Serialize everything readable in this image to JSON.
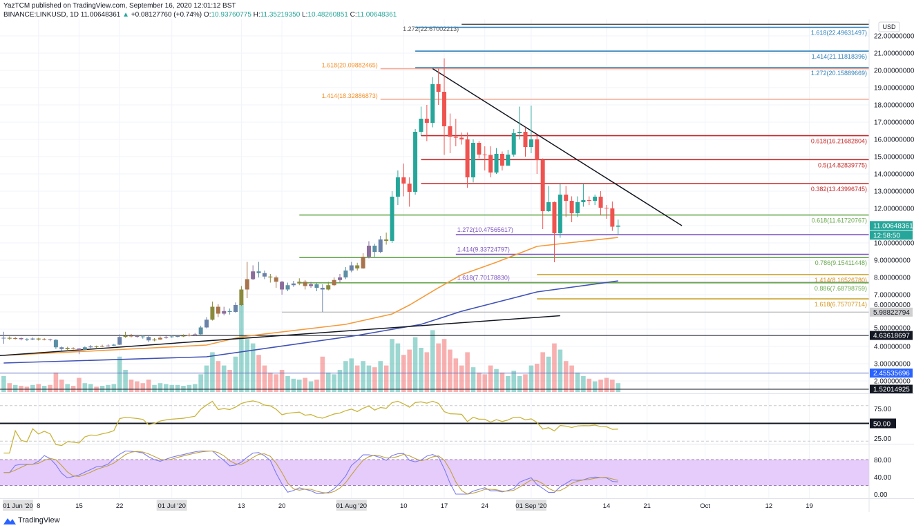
{
  "header": {
    "published": "YazTCM published on TradingView.com, September 16, 2020 12:01:12 BST",
    "symbol": "BINANCE:LINKUSD, 1D",
    "last": "11.00648361",
    "change_arrow": "▲",
    "change": "+0.08127760 (+0.74%)",
    "o_label": "O:",
    "o": "10.93760775",
    "h_label": "H:",
    "h": "11.35219350",
    "l_label": "L:",
    "l": "10.48260851",
    "c_label": "C:",
    "c": "11.00648361"
  },
  "footer": {
    "brand": "TradingView",
    "logo_icon": "tradingview-logo-icon"
  },
  "colors": {
    "up": "#26a69a",
    "down": "#ef5350",
    "rsi": "#c9b43a",
    "stoch_k": "#7b7bf0",
    "stoch_d": "#c0a040",
    "ma_fast": "#f59a3a",
    "ma_slow": "#3f51b5",
    "band": "#e6ccfa"
  },
  "chart_data": [
    {
      "type": "candlestick",
      "pane": "price",
      "currency": "USD",
      "ylim": [
        1.3,
        22.7
      ],
      "y_ticks": [
        "22.00000000",
        "21.00000000",
        "20.00000000",
        "19.00000000",
        "18.00000000",
        "17.00000000",
        "16.00000000",
        "15.00000000",
        "14.00000000",
        "13.00000000",
        "12.00000000",
        "10.00000000",
        "9.00000000",
        "8.00000000",
        "7.00000000",
        "6.00000000",
        "5.00000000",
        "4.00000000",
        "3.00000000",
        "2.00000000"
      ],
      "x_ticks": [
        {
          "date": "2020-06-01",
          "label": "01 Jun '20",
          "major": true
        },
        {
          "date": "2020-06-08",
          "label": "8"
        },
        {
          "date": "2020-06-15",
          "label": "15"
        },
        {
          "date": "2020-06-22",
          "label": "22"
        },
        {
          "date": "2020-07-01",
          "label": "01 Jul '20",
          "major": true
        },
        {
          "date": "2020-07-13",
          "label": "13"
        },
        {
          "date": "2020-07-20",
          "label": "20"
        },
        {
          "date": "2020-08-01",
          "label": "01 Aug '20",
          "major": true
        },
        {
          "date": "2020-08-10",
          "label": "10"
        },
        {
          "date": "2020-08-17",
          "label": "17"
        },
        {
          "date": "2020-08-24",
          "label": "24"
        },
        {
          "date": "2020-09-01",
          "label": "01 Sep '20",
          "major": true
        },
        {
          "date": "2020-09-14",
          "label": "14"
        },
        {
          "date": "2020-09-21",
          "label": "21"
        },
        {
          "date": "2020-10-01",
          "label": "Oct"
        },
        {
          "date": "2020-10-12",
          "label": "12"
        },
        {
          "date": "2020-10-19",
          "label": "19"
        }
      ],
      "start_date": "2020-06-02",
      "open": [
        4.48,
        4.5,
        4.45,
        4.48,
        4.42,
        4.4,
        4.46,
        4.4,
        4.42,
        4.38,
        3.95,
        3.85,
        3.92,
        3.88,
        3.8,
        3.95,
        4.0,
        3.98,
        4.02,
        4.05,
        4.1,
        4.55,
        4.62,
        4.6,
        4.58,
        4.55,
        4.35,
        4.4,
        4.5,
        4.55,
        4.58,
        4.6,
        4.62,
        4.66,
        4.7,
        5.1,
        5.55,
        6.3,
        5.9,
        6.05,
        6.0,
        6.4,
        7.3,
        7.9,
        8.35,
        8.25,
        8.05,
        8.0,
        7.75,
        7.3,
        7.55,
        7.65,
        7.75,
        7.5,
        7.6,
        7.4,
        7.3,
        7.55,
        7.85,
        8.0,
        8.4,
        8.7,
        8.52,
        9.2,
        9.84,
        9.48,
        10.2,
        10.12,
        12.68,
        13.8,
        13.44,
        12.96,
        16.44,
        17.2,
        16.96,
        19.2,
        18.76,
        16.76,
        16.16,
        16.1,
        16.0,
        13.8,
        15.8,
        15.12,
        15.1,
        14.08,
        15.16,
        14.48,
        15.12,
        16.36,
        16.44,
        15.56,
        16.0,
        14.8,
        11.84,
        12.36,
        10.56,
        12.8,
        12.44,
        11.72,
        12.36,
        12.48,
        12.44,
        12.68,
        12.04,
        12.0,
        10.9376
      ],
      "high": [
        4.85,
        4.58,
        4.55,
        4.52,
        4.48,
        4.52,
        4.5,
        4.48,
        4.45,
        4.42,
        4.0,
        3.98,
        3.95,
        3.9,
        4.0,
        4.08,
        4.05,
        4.1,
        4.12,
        4.15,
        4.7,
        4.85,
        4.72,
        4.68,
        4.65,
        4.6,
        4.48,
        4.58,
        4.62,
        4.66,
        4.68,
        4.7,
        4.75,
        4.78,
        5.2,
        5.7,
        6.6,
        6.45,
        6.3,
        6.2,
        6.55,
        7.5,
        8.9,
        8.7,
        8.9,
        8.4,
        8.2,
        8.1,
        7.8,
        7.7,
        7.8,
        7.95,
        7.85,
        7.75,
        7.7,
        7.6,
        7.75,
        8.0,
        8.2,
        8.6,
        8.9,
        8.85,
        9.4,
        10.1,
        9.95,
        10.4,
        10.6,
        13.0,
        14.2,
        14.6,
        13.8,
        16.6,
        17.9,
        18.0,
        19.6,
        20.1,
        20.7,
        17.5,
        17.2,
        16.4,
        16.4,
        16.0,
        15.9,
        15.6,
        15.6,
        15.5,
        15.3,
        15.4,
        16.6,
        17.9,
        16.7,
        17.96,
        16.2,
        14.9,
        13.3,
        12.4,
        13.4,
        13.3,
        12.7,
        12.7,
        13.4,
        12.7,
        12.8,
        13.0,
        12.2,
        12.4,
        11.3522
      ],
      "low": [
        4.15,
        4.38,
        4.4,
        4.35,
        4.32,
        4.36,
        4.34,
        4.35,
        4.3,
        3.85,
        3.75,
        3.8,
        3.82,
        3.55,
        3.78,
        3.9,
        3.92,
        3.95,
        3.98,
        4.02,
        4.08,
        4.5,
        4.52,
        4.5,
        4.45,
        4.25,
        4.3,
        4.38,
        4.45,
        4.5,
        4.52,
        4.55,
        4.58,
        4.62,
        4.68,
        5.05,
        5.5,
        5.7,
        5.8,
        5.85,
        5.95,
        6.35,
        6.8,
        7.85,
        8.0,
        7.9,
        7.7,
        7.4,
        7.0,
        7.2,
        7.45,
        7.55,
        7.3,
        7.4,
        7.2,
        6.0,
        7.25,
        7.5,
        7.7,
        7.9,
        8.3,
        8.4,
        8.5,
        9.1,
        9.2,
        9.4,
        9.9,
        10.0,
        12.2,
        12.7,
        12.1,
        12.8,
        16.2,
        15.9,
        16.7,
        18.0,
        15.1,
        15.2,
        15.6,
        15.7,
        13.2,
        13.5,
        14.9,
        14.2,
        13.8,
        14.0,
        14.2,
        14.6,
        15.0,
        16.0,
        15.0,
        15.2,
        14.0,
        10.8,
        11.8,
        8.88,
        10.3,
        11.5,
        11.2,
        11.5,
        12.1,
        12.2,
        12.2,
        11.6,
        11.4,
        10.7,
        10.4826
      ],
      "close": [
        4.5,
        4.45,
        4.48,
        4.42,
        4.4,
        4.46,
        4.4,
        4.42,
        4.38,
        3.95,
        3.85,
        3.92,
        3.88,
        3.8,
        3.95,
        4.0,
        3.98,
        4.02,
        4.05,
        4.1,
        4.55,
        4.62,
        4.6,
        4.58,
        4.55,
        4.35,
        4.4,
        4.5,
        4.55,
        4.58,
        4.6,
        4.62,
        4.66,
        4.7,
        5.1,
        5.55,
        6.3,
        5.9,
        6.05,
        6.0,
        6.4,
        7.3,
        7.9,
        8.35,
        8.25,
        8.05,
        8.0,
        7.75,
        7.3,
        7.55,
        7.65,
        7.75,
        7.5,
        7.6,
        7.4,
        7.3,
        7.55,
        7.85,
        8.0,
        8.4,
        8.7,
        8.52,
        9.2,
        9.84,
        9.48,
        10.2,
        10.12,
        12.68,
        13.8,
        13.44,
        12.96,
        16.44,
        17.2,
        16.96,
        19.2,
        18.76,
        16.76,
        16.16,
        16.1,
        16.0,
        13.8,
        15.8,
        15.12,
        15.1,
        14.08,
        15.16,
        14.48,
        15.12,
        16.36,
        16.44,
        15.56,
        16.0,
        14.8,
        11.84,
        12.36,
        10.56,
        12.8,
        12.44,
        11.72,
        12.36,
        12.48,
        12.44,
        12.68,
        12.04,
        12.0,
        10.94,
        11.0065
      ],
      "volume_relative": [
        18,
        10,
        8,
        7,
        6,
        8,
        9,
        7,
        8,
        22,
        14,
        9,
        7,
        16,
        10,
        9,
        6,
        7,
        8,
        9,
        40,
        25,
        14,
        12,
        10,
        14,
        8,
        10,
        9,
        8,
        8,
        7,
        8,
        9,
        20,
        30,
        45,
        35,
        30,
        25,
        40,
        100,
        60,
        55,
        42,
        30,
        22,
        20,
        25,
        18,
        15,
        14,
        16,
        12,
        14,
        40,
        22,
        20,
        25,
        35,
        38,
        30,
        35,
        30,
        28,
        35,
        30,
        60,
        55,
        42,
        48,
        62,
        50,
        45,
        70,
        55,
        60,
        48,
        38,
        30,
        45,
        28,
        22,
        20,
        30,
        26,
        22,
        18,
        24,
        18,
        20,
        30,
        32,
        45,
        40,
        55,
        48,
        35,
        30,
        22,
        18,
        15,
        12,
        14,
        16,
        14,
        10
      ],
      "moving_averages": [
        {
          "color": "#f59a3a",
          "points": [
            [
              "2020-06-02",
              3.48
            ],
            [
              "2020-06-21",
              3.8
            ],
            [
              "2020-07-07",
              4.08
            ],
            [
              "2020-07-13",
              4.56
            ],
            [
              "2020-07-31",
              5.28
            ],
            [
              "2020-08-08",
              5.88
            ],
            [
              "2020-08-11",
              6.4
            ],
            [
              "2020-08-16",
              7.4
            ],
            [
              "2020-08-20",
              8.16
            ],
            [
              "2020-08-26",
              8.88
            ],
            [
              "2020-09-02",
              9.8
            ],
            [
              "2020-09-16",
              10.32
            ]
          ]
        },
        {
          "color": "#3f51b5",
          "points": [
            [
              "2020-06-02",
              3.04
            ],
            [
              "2020-07-07",
              3.4
            ],
            [
              "2020-08-02",
              4.64
            ],
            [
              "2020-08-13",
              5.28
            ],
            [
              "2020-08-20",
              6.04
            ],
            [
              "2020-09-02",
              7.16
            ],
            [
              "2020-09-16",
              7.8
            ]
          ]
        }
      ],
      "trendlines": [
        {
          "color": "#131722",
          "from": [
            "2020-08-15",
            20.1
          ],
          "to": [
            "2020-09-27",
            11.0
          ]
        },
        {
          "color": "#131722",
          "from": [
            "2020-06-01",
            3.46
          ],
          "to": [
            "2020-09-06",
            5.78
          ]
        }
      ],
      "levels": [
        {
          "label": "1.272(22.67002213)",
          "price": 22.67002213,
          "color": "#555555",
          "from": "2020-08-20",
          "label_side": "left"
        },
        {
          "label": "1.618(22.49631497)",
          "price": 22.49631497,
          "color": "#2e7fb8",
          "from": "2020-08-12",
          "label_side": "right"
        },
        {
          "label": "1.414(21.11818396)",
          "price": 21.11818396,
          "color": "#2e7fb8",
          "from": "2020-08-12",
          "label_side": "right"
        },
        {
          "label": "1.272(20.15889669)",
          "price": 20.15889669,
          "color": "#2e7fb8",
          "from": "2020-08-12",
          "label_side": "right"
        },
        {
          "label": "1.618(20.09882465)",
          "price": 20.09882465,
          "color": "#f7a894",
          "label_color": "#f5922f",
          "from": "2020-08-06",
          "label_side": "left"
        },
        {
          "label": "1.414(18.32886873)",
          "price": 18.32886873,
          "color": "#f7a894",
          "label_color": "#f5922f",
          "from": "2020-08-06",
          "label_side": "left"
        },
        {
          "label": "0.618(16.21682804)",
          "price": 16.21682804,
          "color": "#c62828",
          "from": "2020-08-13",
          "label_side": "right"
        },
        {
          "label": "0.5(14.82839775)",
          "price": 14.82839775,
          "color": "#c62828",
          "from": "2020-08-13",
          "label_side": "right"
        },
        {
          "label": "0.382(13.43996745)",
          "price": 13.43996745,
          "color": "#c62828",
          "from": "2020-08-13",
          "label_side": "right"
        },
        {
          "label": "0.618(11.61720767)",
          "price": 11.61720767,
          "color": "#6aa84f",
          "from": "2020-07-23",
          "label_side": "right"
        },
        {
          "label": "1.272(10.47565617)",
          "price": 10.47565617,
          "color": "#7e57c2",
          "from": "2020-08-19",
          "label_side": "left"
        },
        {
          "label": "1.414(9.33724797)",
          "price": 9.33724797,
          "color": "#7e57c2",
          "from": "2020-08-19",
          "label_side": "left"
        },
        {
          "label": "0.786(9.15411448)",
          "price": 9.15411448,
          "color": "#6aa84f",
          "from": "2020-07-23",
          "label_side": "right"
        },
        {
          "label": "1.414(8.16526780)",
          "price": 8.1652678,
          "color": "#c9a227",
          "label_color": "#d4951f",
          "from": "2020-09-02",
          "label_side": "right"
        },
        {
          "label": "1.618(7.70178830)",
          "price": 7.7017883,
          "color": "#7e57c2",
          "from": "2020-08-19",
          "label_side": "left"
        },
        {
          "label": "0.886(7.68798759)",
          "price": 7.68798759,
          "color": "#6aa84f",
          "from": "2020-07-23",
          "label_side": "right"
        },
        {
          "label": "1.618(6.75707714)",
          "price": 6.75707714,
          "color": "#c9a227",
          "label_color": "#d4951f",
          "from": "2020-09-02",
          "label_side": "right"
        }
      ],
      "axis_badges": [
        {
          "text": "11.00648361",
          "price": 11.00648361,
          "bg": "#26a69a",
          "fg": "#ffffff"
        },
        {
          "text": "12:58:50",
          "price": 10.45,
          "bg": "#26a69a",
          "fg": "#ffffff"
        },
        {
          "text": "5.98822794",
          "price": 5.98822794,
          "bg": "#cfcfcf",
          "fg": "#131722",
          "line": "#aaaaaa",
          "from": "2020-07-20"
        },
        {
          "text": "4.63618697",
          "price": 4.63618697,
          "bg": "#131722",
          "fg": "#ffffff",
          "line": "#131722",
          "from": "2020-06-01"
        },
        {
          "text": "2.45535696",
          "price": 2.45535696,
          "bg": "#2962ff",
          "fg": "#ffffff",
          "line": "#5c6bc0",
          "from": "2020-06-01"
        },
        {
          "text": "1.52014925",
          "price": 1.52014925,
          "bg": "#131722",
          "fg": "#ffffff",
          "line": "#131722",
          "from": "2020-06-01"
        }
      ]
    },
    {
      "type": "line",
      "pane": "rsi",
      "source": "close",
      "ylim": [
        17,
        97
      ],
      "y_ticks": [
        "75.00",
        "25.00"
      ],
      "bands": [
        80,
        20
      ],
      "midline": 50,
      "midline_badge": "50.00"
    },
    {
      "type": "line",
      "pane": "stoch-rsi",
      "ylim": [
        0,
        100
      ],
      "y_ticks": [
        "80.00",
        "40.00",
        "0.00"
      ],
      "band": [
        20,
        80
      ]
    }
  ]
}
